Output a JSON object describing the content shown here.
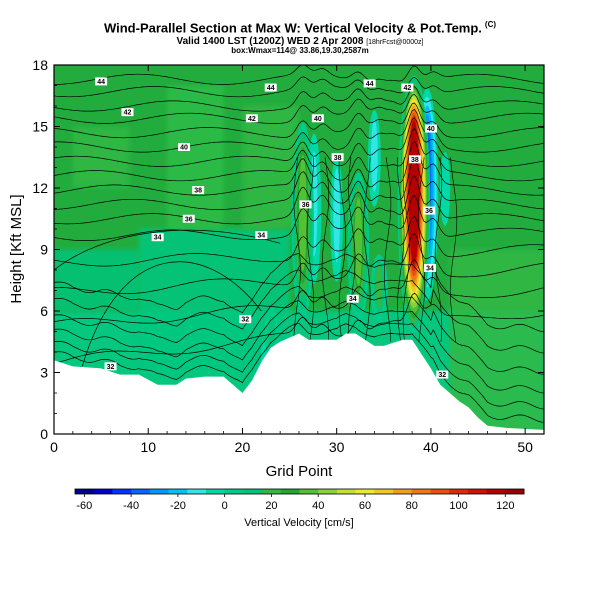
{
  "titles": {
    "main": "Wind-Parallel Section at Max W: Vertical Velocity & Pot.Temp.",
    "copyright": "(C)",
    "valid": "Valid 1400 LST (1200Z) WED 2 Apr 2008",
    "forecast": "[18hrFcst@0000z]",
    "info": "box:Wmax=114@ 33.86,19.30,2587m"
  },
  "chart_data": {
    "type": "heatmap",
    "title": "Wind-Parallel Section at Max W: Vertical Velocity & Pot.Temp.",
    "xlabel": "Grid Point",
    "ylabel": "Height [Kft MSL]",
    "xlim": [
      0,
      52
    ],
    "ylim": [
      0,
      18
    ],
    "xticks": [
      0,
      10,
      20,
      30,
      40,
      50
    ],
    "yticks": [
      0,
      3,
      6,
      9,
      12,
      15,
      18
    ],
    "colorbar": {
      "label": "Vertical Velocity [cm/s]",
      "ticks": [
        -60,
        -40,
        -20,
        0,
        20,
        40,
        60,
        80,
        100,
        120
      ],
      "range": [
        -64,
        128
      ],
      "colors": [
        "#00008c",
        "#0000cc",
        "#0033ff",
        "#0066ff",
        "#0099ff",
        "#00c3f5",
        "#33e6e6",
        "#00d8a8",
        "#00cc8a",
        "#00c47a",
        "#33b844",
        "#22a832",
        "#52c234",
        "#8ad23c",
        "#c2e036",
        "#eaea30",
        "#f0c828",
        "#f0a020",
        "#ee7818",
        "#e85010",
        "#dd2a08",
        "#d01000",
        "#b40000",
        "#960000"
      ]
    },
    "terrain": [
      {
        "x": 0,
        "h": 3.6
      },
      {
        "x": 2,
        "h": 3.3
      },
      {
        "x": 5,
        "h": 3.2
      },
      {
        "x": 7,
        "h": 2.9
      },
      {
        "x": 9,
        "h": 2.9
      },
      {
        "x": 11,
        "h": 2.4
      },
      {
        "x": 13,
        "h": 2.4
      },
      {
        "x": 14,
        "h": 2.7
      },
      {
        "x": 16,
        "h": 2.8
      },
      {
        "x": 18,
        "h": 2.8
      },
      {
        "x": 19,
        "h": 2.4
      },
      {
        "x": 20,
        "h": 2.0
      },
      {
        "x": 21,
        "h": 2.6
      },
      {
        "x": 22,
        "h": 3.5
      },
      {
        "x": 23,
        "h": 4.2
      },
      {
        "x": 24,
        "h": 4.5
      },
      {
        "x": 26,
        "h": 4.9
      },
      {
        "x": 27,
        "h": 4.6
      },
      {
        "x": 30,
        "h": 4.6
      },
      {
        "x": 31,
        "h": 4.9
      },
      {
        "x": 32,
        "h": 4.9
      },
      {
        "x": 33,
        "h": 4.6
      },
      {
        "x": 34,
        "h": 4.3
      },
      {
        "x": 35,
        "h": 4.3
      },
      {
        "x": 37,
        "h": 4.6
      },
      {
        "x": 38,
        "h": 4.6
      },
      {
        "x": 39,
        "h": 3.9
      },
      {
        "x": 40,
        "h": 3.2
      },
      {
        "x": 41,
        "h": 2.4
      },
      {
        "x": 42,
        "h": 2.0
      },
      {
        "x": 43,
        "h": 1.6
      },
      {
        "x": 44,
        "h": 1.3
      },
      {
        "x": 45,
        "h": 0.8
      },
      {
        "x": 46,
        "h": 0.4
      },
      {
        "x": 48,
        "h": 0.3
      },
      {
        "x": 52,
        "h": 0.2
      }
    ],
    "updrafts": [
      {
        "x": 26.4,
        "ylo": 5.0,
        "yhi": 15.5,
        "w": 38
      },
      {
        "x": 32.3,
        "ylo": 5.0,
        "yhi": 13.0,
        "w": 35
      },
      {
        "x": 38.2,
        "ylo": 4.7,
        "yhi": 17.6,
        "w": 114
      },
      {
        "x": 23.1,
        "ylo": 3.0,
        "yhi": 6.5,
        "w": 12
      },
      {
        "x": 34.5,
        "ylo": 5.0,
        "yhi": 9.0,
        "w": 18
      }
    ],
    "downdrafts": [
      {
        "x": 27.6,
        "ylo": 6.0,
        "yhi": 15.5,
        "w": -12
      },
      {
        "x": 30.0,
        "ylo": 6.0,
        "yhi": 14.5,
        "w": -10
      },
      {
        "x": 34.0,
        "ylo": 10.0,
        "yhi": 16.5,
        "w": -10
      },
      {
        "x": 39.6,
        "ylo": 6.0,
        "yhi": 17.2,
        "w": -38
      },
      {
        "x": 41.5,
        "ylo": 9.0,
        "yhi": 14.5,
        "w": -8
      },
      {
        "x": 22.3,
        "ylo": 2.0,
        "yhi": 5.0,
        "w": -6
      }
    ],
    "contour_labels": [
      {
        "text": "44",
        "x": 5.0,
        "y": 17.2
      },
      {
        "text": "44",
        "x": 23.0,
        "y": 16.9
      },
      {
        "text": "44",
        "x": 33.5,
        "y": 17.1
      },
      {
        "text": "42",
        "x": 37.5,
        "y": 16.9
      },
      {
        "text": "42",
        "x": 7.8,
        "y": 15.7
      },
      {
        "text": "42",
        "x": 21.0,
        "y": 15.4
      },
      {
        "text": "40",
        "x": 28.0,
        "y": 15.4
      },
      {
        "text": "40",
        "x": 40.0,
        "y": 14.9
      },
      {
        "text": "40",
        "x": 13.8,
        "y": 14.0
      },
      {
        "text": "38",
        "x": 30.1,
        "y": 13.5
      },
      {
        "text": "38",
        "x": 38.3,
        "y": 13.4
      },
      {
        "text": "38",
        "x": 15.3,
        "y": 11.9
      },
      {
        "text": "36",
        "x": 26.7,
        "y": 11.2
      },
      {
        "text": "36",
        "x": 39.8,
        "y": 10.9
      },
      {
        "text": "36",
        "x": 14.3,
        "y": 10.5
      },
      {
        "text": "34",
        "x": 11.0,
        "y": 9.6
      },
      {
        "text": "34",
        "x": 22.0,
        "y": 9.7
      },
      {
        "text": "34",
        "x": 39.9,
        "y": 8.1
      },
      {
        "text": "34",
        "x": 31.7,
        "y": 6.6
      },
      {
        "text": "32",
        "x": 20.3,
        "y": 5.6
      },
      {
        "text": "32",
        "x": 6.0,
        "y": 3.3
      },
      {
        "text": "32",
        "x": 41.2,
        "y": 2.9
      }
    ]
  }
}
